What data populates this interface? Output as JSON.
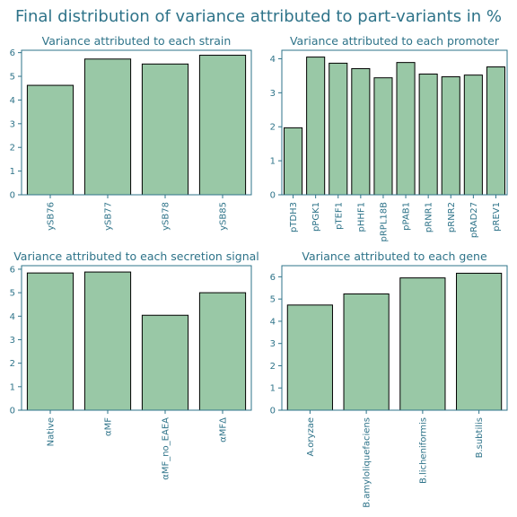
{
  "title": "Final distribution of variance attributed to part-variants in %",
  "colors": {
    "bar": "#99c8a6",
    "text": "#2e7389",
    "edge": "#000000"
  },
  "chart_data": [
    {
      "type": "bar",
      "title": "Variance attributed to each strain",
      "categories": [
        "ySB76",
        "ySB77",
        "ySB78",
        "ySB85"
      ],
      "values": [
        4.62,
        5.73,
        5.52,
        5.89
      ],
      "ylim": [
        0,
        6.1
      ],
      "yticks": [
        0,
        1,
        2,
        3,
        4,
        5,
        6
      ],
      "xlabel": "",
      "ylabel": ""
    },
    {
      "type": "bar",
      "title": "Variance attributed to each promoter",
      "categories": [
        "pTDH3",
        "pPGK1",
        "pTEF1",
        "pHHF1",
        "pRPL18B",
        "pPAB1",
        "pRNR1",
        "pRNR2",
        "pRAD27",
        "pREV1"
      ],
      "values": [
        1.97,
        4.05,
        3.87,
        3.71,
        3.44,
        3.89,
        3.55,
        3.47,
        3.52,
        3.76
      ],
      "ylim": [
        0,
        4.25
      ],
      "yticks": [
        0,
        1,
        2,
        3,
        4
      ],
      "xlabel": "",
      "ylabel": ""
    },
    {
      "type": "bar",
      "title": "Variance attributed to each secretion signal",
      "categories": [
        "Native",
        "αMF",
        "αMF_no_EAEA",
        "αMFΔ"
      ],
      "values": [
        5.84,
        5.88,
        4.04,
        5.0
      ],
      "ylim": [
        0,
        6.15
      ],
      "yticks": [
        0,
        1,
        2,
        3,
        4,
        5,
        6
      ],
      "xlabel": "",
      "ylabel": ""
    },
    {
      "type": "bar",
      "title": "Variance attributed to each gene",
      "categories": [
        "A.oryzae",
        "B.amyloliquefaciens",
        "B.licheniformis",
        "B.subtilis"
      ],
      "values": [
        4.73,
        5.23,
        5.95,
        6.16
      ],
      "ylim": [
        0,
        6.5
      ],
      "yticks": [
        0,
        1,
        2,
        3,
        4,
        5,
        6
      ],
      "xlabel": "",
      "ylabel": ""
    }
  ]
}
